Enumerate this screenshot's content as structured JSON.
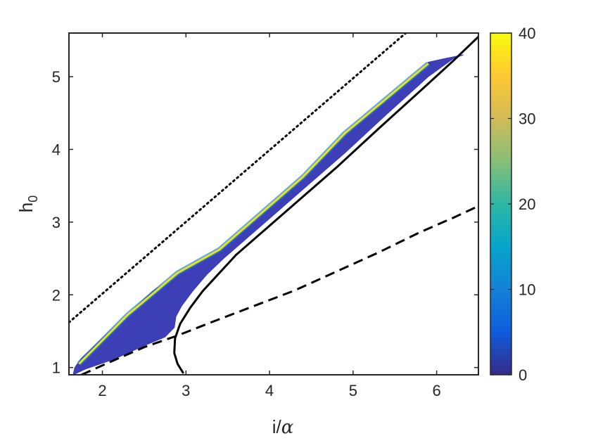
{
  "chart_data": {
    "type": "contour",
    "title": "",
    "xlabel": {
      "main": "i/",
      "greek": "α"
    },
    "ylabel": {
      "main": "h",
      "sub": "0"
    },
    "xlim": [
      1.6,
      6.5
    ],
    "ylim": [
      0.9,
      5.6
    ],
    "x_ticks": [
      "2",
      "3",
      "4",
      "5",
      "6"
    ],
    "y_ticks": [
      "1",
      "2",
      "3",
      "4",
      "5"
    ],
    "colorbar": {
      "range": [
        0,
        40
      ],
      "ticks": [
        "0",
        "10",
        "20",
        "30",
        "40"
      ],
      "colormap": "parula",
      "colors": [
        "#352a87",
        "#0f5cdd",
        "#1481d6",
        "#06a4ca",
        "#2eb7a4",
        "#87bf77",
        "#d1bb59",
        "#fec832",
        "#f9fb0e"
      ]
    },
    "series": [
      {
        "style": "dotted",
        "color": "#000000",
        "points": [
          [
            1.6,
            1.62
          ],
          [
            5.63,
            5.6
          ]
        ]
      },
      {
        "style": "dashed",
        "color": "#000000",
        "points": [
          [
            1.75,
            0.9
          ],
          [
            2.1,
            1.08
          ],
          [
            2.5,
            1.28
          ],
          [
            2.9,
            1.44
          ],
          [
            3.3,
            1.62
          ],
          [
            3.8,
            1.84
          ],
          [
            4.3,
            2.06
          ],
          [
            4.8,
            2.32
          ],
          [
            5.3,
            2.58
          ],
          [
            5.8,
            2.86
          ],
          [
            6.2,
            3.06
          ],
          [
            6.5,
            3.22
          ]
        ]
      },
      {
        "style": "solid",
        "color": "#000000",
        "points": [
          [
            2.97,
            0.92
          ],
          [
            2.9,
            1.05
          ],
          [
            2.86,
            1.2
          ],
          [
            2.87,
            1.4
          ],
          [
            2.93,
            1.6
          ],
          [
            3.05,
            1.82
          ],
          [
            3.2,
            2.05
          ],
          [
            3.4,
            2.3
          ],
          [
            3.6,
            2.55
          ],
          [
            3.9,
            2.85
          ],
          [
            4.3,
            3.25
          ],
          [
            4.8,
            3.75
          ],
          [
            5.3,
            4.28
          ],
          [
            5.8,
            4.8
          ],
          [
            6.2,
            5.22
          ],
          [
            6.5,
            5.55
          ]
        ]
      }
    ],
    "filled_region": {
      "boundary": [
        [
          1.65,
          0.9
        ],
        [
          1.8,
          0.98
        ],
        [
          2.15,
          1.12
        ],
        [
          2.5,
          1.3
        ],
        [
          2.75,
          1.42
        ],
        [
          2.86,
          1.55
        ],
        [
          2.88,
          1.7
        ],
        [
          2.95,
          1.85
        ],
        [
          3.08,
          2.05
        ],
        [
          3.25,
          2.28
        ],
        [
          3.45,
          2.5
        ],
        [
          3.7,
          2.75
        ],
        [
          4.0,
          3.05
        ],
        [
          4.4,
          3.45
        ],
        [
          4.9,
          3.95
        ],
        [
          5.4,
          4.48
        ],
        [
          5.9,
          5.0
        ],
        [
          6.2,
          5.25
        ],
        [
          6.32,
          5.3
        ],
        [
          6.1,
          5.25
        ],
        [
          5.9,
          5.2
        ],
        [
          5.4,
          4.68
        ],
        [
          4.9,
          4.2
        ],
        [
          4.4,
          3.6
        ],
        [
          3.9,
          3.1
        ],
        [
          3.4,
          2.6
        ],
        [
          3.0,
          2.35
        ],
        [
          2.6,
          2.05
        ],
        [
          2.2,
          1.62
        ],
        [
          1.75,
          1.13
        ],
        [
          1.67,
          1.0
        ]
      ],
      "high_value_edge": [
        [
          1.72,
          1.05
        ],
        [
          2.3,
          1.72
        ],
        [
          2.9,
          2.3
        ],
        [
          3.4,
          2.62
        ],
        [
          3.9,
          3.12
        ],
        [
          4.4,
          3.62
        ],
        [
          4.9,
          4.22
        ],
        [
          5.4,
          4.7
        ],
        [
          5.9,
          5.18
        ]
      ]
    }
  }
}
